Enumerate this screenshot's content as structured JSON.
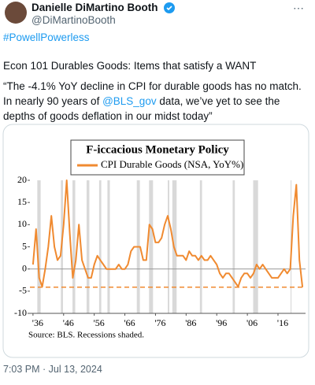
{
  "tweet": {
    "author": {
      "name": "Danielle DiMartino Booth",
      "handle": "@DiMartinoBooth"
    },
    "hashtag": "#PowellPowerless",
    "line1": "Econ 101 Durables Goods: Items that satisfy a WANT",
    "quote": {
      "before": "“The -4.1% YoY decline in CPI for durable goods has no match. In nearly 90 years of ",
      "mention": "@BLS_gov",
      "after": " data, we’ve yet to see the depths of goods deflation in our midst today”"
    },
    "timestamp": "7:03 PM · Jul 13, 2024"
  },
  "chart_data": {
    "type": "line",
    "title": "F-iccacious Monetary Policy",
    "source": "Source: BLS. Recessions shaded.",
    "x": [
      1936,
      1937,
      1938,
      1939,
      1940,
      1941,
      1942,
      1943,
      1944,
      1945,
      1946,
      1947,
      1948,
      1949,
      1950,
      1951,
      1952,
      1953,
      1954,
      1955,
      1956,
      1957,
      1958,
      1959,
      1960,
      1961,
      1962,
      1963,
      1964,
      1965,
      1966,
      1967,
      1968,
      1969,
      1970,
      1971,
      1972,
      1973,
      1974,
      1975,
      1976,
      1977,
      1978,
      1979,
      1980,
      1981,
      1982,
      1983,
      1984,
      1985,
      1986,
      1987,
      1988,
      1989,
      1990,
      1991,
      1992,
      1993,
      1994,
      1995,
      1996,
      1997,
      1998,
      1999,
      2000,
      2001,
      2002,
      2003,
      2004,
      2005,
      2006,
      2007,
      2008,
      2009,
      2010,
      2011,
      2012,
      2013,
      2014,
      2015,
      2016,
      2017,
      2018,
      2019,
      2020,
      2021,
      2022,
      2023,
      2024
    ],
    "series": [
      {
        "name": "CPI Durable Goods (NSA, YoY%)",
        "color": "#f08a30",
        "values": [
          1,
          9,
          -2,
          -4,
          0,
          5,
          12,
          5,
          2,
          3,
          10,
          20,
          8,
          -2,
          2,
          10,
          2,
          0,
          -2,
          -2,
          1,
          3,
          2,
          1,
          0,
          0,
          0,
          0,
          1,
          0,
          0,
          1,
          4,
          5,
          5,
          5,
          2,
          2,
          10,
          9,
          6,
          6,
          7,
          10,
          12,
          9,
          5,
          3,
          3,
          3,
          2,
          4,
          3,
          3,
          2,
          3,
          2,
          2,
          3,
          2,
          1,
          -1,
          -2,
          -1,
          -1,
          -2,
          -3,
          -4,
          -2,
          -1,
          -1,
          -2,
          -1,
          1,
          0,
          1,
          0,
          -1,
          -2,
          -2,
          -2,
          -1,
          0,
          -1,
          0,
          12,
          19,
          2,
          -4.1
        ]
      }
    ],
    "recessions": [
      [
        1937.4,
        1938.5
      ],
      [
        1945.1,
        1945.8
      ],
      [
        1948.9,
        1949.8
      ],
      [
        1953.5,
        1954.4
      ],
      [
        1957.6,
        1958.3
      ],
      [
        1960.3,
        1961.1
      ],
      [
        1969.9,
        1970.9
      ],
      [
        1973.9,
        1975.2
      ],
      [
        1980,
        1980.5
      ],
      [
        1981.5,
        1982.9
      ],
      [
        1990.5,
        1991.2
      ],
      [
        2001.2,
        2001.9
      ],
      [
        2007.9,
        2009.5
      ],
      [
        2020.1,
        2020.4
      ]
    ],
    "hline": -4.1,
    "xlim": [
      1935,
      2025
    ],
    "ylim": [
      -10,
      20
    ],
    "xticks": [
      {
        "value": 1936,
        "label": "'36"
      },
      {
        "value": 1946,
        "label": "'46"
      },
      {
        "value": 1956,
        "label": "'56"
      },
      {
        "value": 1966,
        "label": "'66"
      },
      {
        "value": 1976,
        "label": "'76"
      },
      {
        "value": 1986,
        "label": "'86"
      },
      {
        "value": 1996,
        "label": "'96"
      },
      {
        "value": 2006,
        "label": "'06"
      },
      {
        "value": 2016,
        "label": "'16"
      }
    ],
    "yticks": [
      20,
      15,
      10,
      5,
      0,
      -5,
      -10
    ]
  }
}
